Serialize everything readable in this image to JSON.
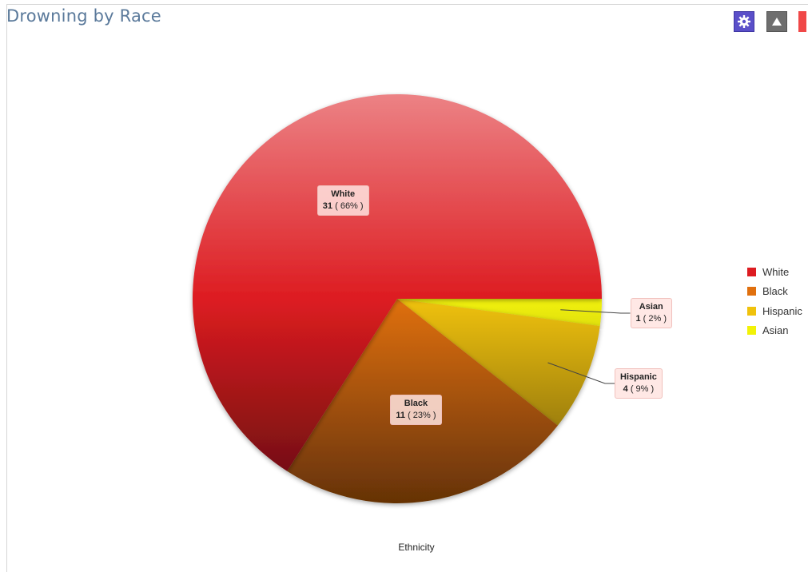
{
  "title": "Drowning by Race",
  "toolbar": {
    "settings_icon": "gear-icon",
    "collapse_icon": "triangle-up-icon",
    "close_icon": "close-icon"
  },
  "chart_data": {
    "type": "pie",
    "title": "Drowning by Race",
    "xlabel": "Ethnicity",
    "categories": [
      "White",
      "Black",
      "Hispanic",
      "Asian"
    ],
    "values": [
      31,
      11,
      4,
      1
    ],
    "percent_labels": [
      "66%",
      "23%",
      "9%",
      "2%"
    ],
    "colors": [
      "#dd1c21",
      "#e0700e",
      "#f0c20c",
      "#f2f208"
    ],
    "legend": "right"
  }
}
